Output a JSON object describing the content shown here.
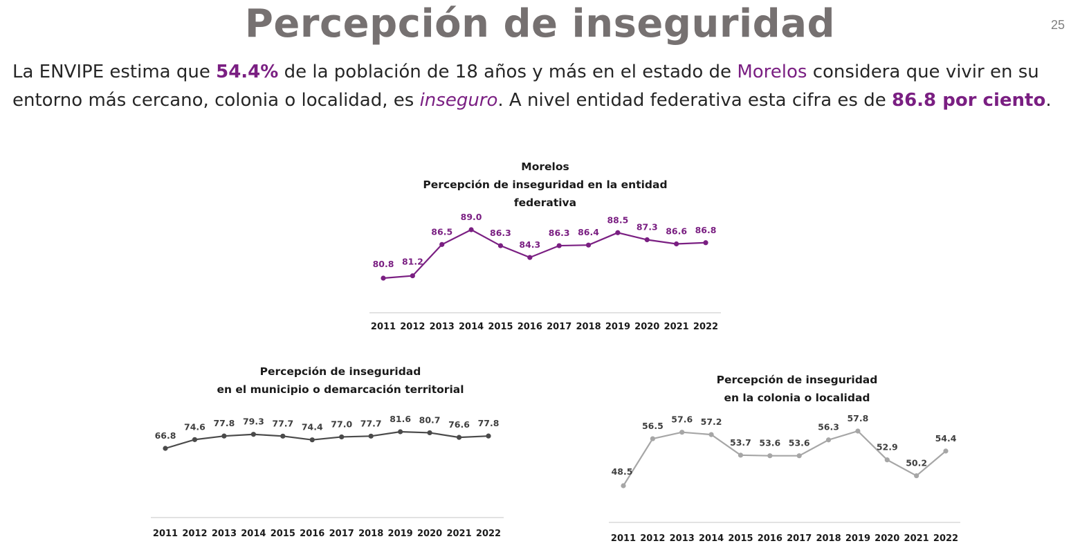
{
  "header": {
    "title": "Percepción de inseguridad",
    "page_number": "25"
  },
  "intro": {
    "p1": "La ENVIPE estima que ",
    "value_state": "54.4%",
    "p2": " de la población de 18 años y más en el estado de ",
    "state": "Morelos",
    "p3": " considera que vivir en su entorno más cercano, colonia o localidad, es ",
    "italic_word": "inseguro",
    "p4": ". A nivel entidad federativa esta cifra es de ",
    "value_entity": "86.8 por ciento",
    "p5": "."
  },
  "colors": {
    "title": "#767171",
    "accent": "#7a1f82",
    "municipio_line": "#4a4a4a",
    "colonia_line": "#a6a6a6",
    "axis": "#d9d9d9",
    "label_dark": "#3f3f3f"
  },
  "chart_data": [
    {
      "type": "line",
      "title_lines": [
        "Morelos",
        "Percepción de inseguridad en la entidad",
        "federativa"
      ],
      "categories": [
        "2011",
        "2012",
        "2013",
        "2014",
        "2015",
        "2016",
        "2017",
        "2018",
        "2019",
        "2020",
        "2021",
        "2022"
      ],
      "series": [
        {
          "values": [
            80.8,
            81.2,
            86.5,
            89.0,
            86.3,
            84.3,
            86.3,
            86.4,
            88.5,
            87.3,
            86.6,
            86.8
          ]
        }
      ],
      "data_labels": [
        "80.8",
        "81.2",
        "86.5",
        "89.0",
        "86.3",
        "84.3",
        "86.3",
        "86.4",
        "88.5",
        "87.3",
        "86.6",
        "86.8"
      ],
      "color": "#7a1f82",
      "xlabel": "",
      "ylabel": "",
      "grid": false,
      "legend": "none"
    },
    {
      "type": "line",
      "title_lines": [
        "Percepción de inseguridad",
        "en el municipio o demarcación territorial"
      ],
      "categories": [
        "2011",
        "2012",
        "2013",
        "2014",
        "2015",
        "2016",
        "2017",
        "2018",
        "2019",
        "2020",
        "2021",
        "2022"
      ],
      "series": [
        {
          "values": [
            66.8,
            74.6,
            77.8,
            79.3,
            77.7,
            74.4,
            77.0,
            77.7,
            81.6,
            80.7,
            76.6,
            77.8
          ]
        }
      ],
      "data_labels": [
        "66.8",
        "74.6",
        "77.8",
        "79.3",
        "77.7",
        "74.4",
        "77.0",
        "77.7",
        "81.6",
        "80.7",
        "76.6",
        "77.8"
      ],
      "color": "#4a4a4a",
      "xlabel": "",
      "ylabel": "",
      "grid": false,
      "legend": "none"
    },
    {
      "type": "line",
      "title_lines": [
        "Percepción de inseguridad",
        "en la colonia o localidad"
      ],
      "categories": [
        "2011",
        "2012",
        "2013",
        "2014",
        "2015",
        "2016",
        "2017",
        "2018",
        "2019",
        "2020",
        "2021",
        "2022"
      ],
      "series": [
        {
          "values": [
            48.5,
            56.5,
            57.6,
            57.2,
            53.7,
            53.6,
            53.6,
            56.3,
            57.8,
            52.9,
            50.2,
            54.4
          ]
        }
      ],
      "data_labels": [
        "48.5",
        "56.5",
        "57.6",
        "57.2",
        "53.7",
        "53.6",
        "53.6",
        "56.3",
        "57.8",
        "52.9",
        "50.2",
        "54.4"
      ],
      "color": "#a6a6a6",
      "xlabel": "",
      "ylabel": "",
      "grid": false,
      "legend": "none"
    }
  ]
}
